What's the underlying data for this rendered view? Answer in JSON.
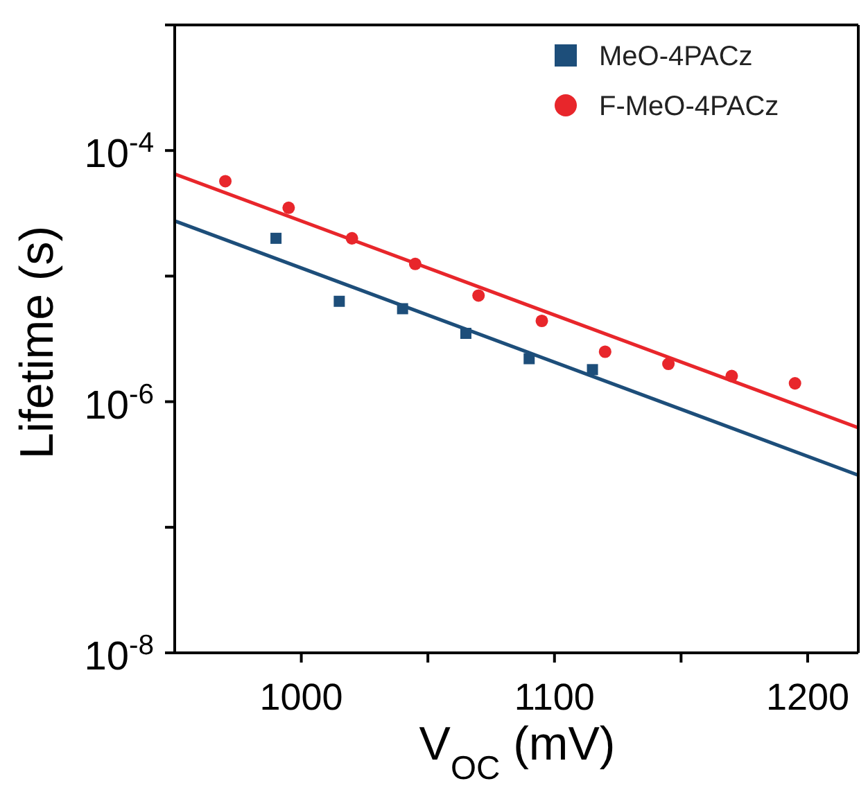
{
  "chart_data": {
    "type": "scatter",
    "xlabel": "V$_{OC}$ (mV)",
    "ylabel": "Lifetime (s)",
    "log": "y",
    "xlim": [
      950,
      1220
    ],
    "ylim": [
      1e-08,
      0.001
    ],
    "xticks": [
      1000,
      {
        "value": 1050,
        "label": null
      },
      1100,
      {
        "value": 1150,
        "label": null
      },
      1200
    ],
    "yticks": [
      {
        "value": 1e-08,
        "label": "10$^{-8}$"
      },
      {
        "value": 1e-07,
        "label": null
      },
      {
        "value": 1e-06,
        "label": "10$^{-6}$"
      },
      {
        "value": 1e-05,
        "label": null
      },
      {
        "value": 0.0001,
        "label": "10$^{-4}$"
      },
      {
        "value": 0.001,
        "label": null
      }
    ],
    "legend": "top right",
    "series": [
      {
        "name": "MeO-4PACz",
        "marker": "square",
        "color": "#1d4e7a",
        "x": [
          990,
          1015,
          1040,
          1065,
          1090,
          1115
        ],
        "values": [
          2e-05,
          6.3e-06,
          5.5e-06,
          3.5e-06,
          2.2e-06,
          1.8e-06
        ]
      },
      {
        "name": "F-MeO-4PACz",
        "marker": "circle",
        "color": "#e8262b",
        "x": [
          970,
          995,
          1020,
          1045,
          1070,
          1095,
          1120,
          1145,
          1170,
          1195
        ],
        "values": [
          5.7e-05,
          3.5e-05,
          2e-05,
          1.25e-05,
          7e-06,
          4.4e-06,
          2.5e-06,
          2e-06,
          1.6e-06,
          1.4e-06
        ]
      },
      {
        "type": "line",
        "marker": "none",
        "line_style": "solid",
        "color": "#1d4e7a",
        "x": [
          950,
          1220
        ],
        "values": [
          2.75e-05,
          2.6e-07
        ]
      },
      {
        "type": "line",
        "marker": "none",
        "line_style": "solid",
        "color": "#e8262b",
        "x": [
          950,
          1220
        ],
        "values": [
          6.5e-05,
          6.2e-07
        ]
      }
    ]
  }
}
